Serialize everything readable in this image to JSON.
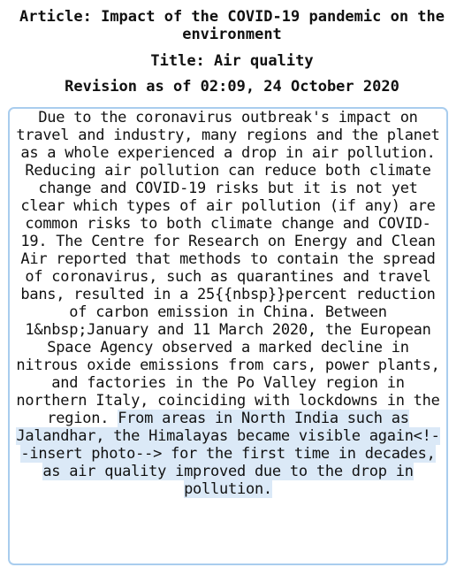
{
  "header": {
    "article": "Article: Impact of the COVID-19 pandemic on the environment",
    "title": "Title: Air quality",
    "revision": "Revision as of 02:09, 24 October 2020"
  },
  "content": {
    "plain_text": "Due to the coronavirus outbreak's impact on travel and industry, many regions and the planet as a whole experienced a drop in air pollution. Reducing air pollution can reduce both climate change and COVID-19 risks but it is not yet clear which types of air pollution (if any) are common risks to both climate change and COVID-19. The Centre for Research on Energy and Clean Air reported that methods to contain the spread of coronavirus, such as quarantines and travel bans, resulted in a 25{{nbsp}}percent reduction of carbon emission in China. Between 1&nbsp;January and 11 March 2020, the European Space Agency observed a marked decline in nitrous oxide emissions from cars, power plants, and factories in the Po Valley region in northern Italy, coinciding with lockdowns in the region.",
    "highlighted_text": "From areas in North India such as Jalandhar, the Himalayas became visible again<!--insert photo--> for the first time in decades, as air quality improved due to the drop in pollution.",
    "highlight_color": "#dbe9f7",
    "border_color": "#a9cdee"
  }
}
